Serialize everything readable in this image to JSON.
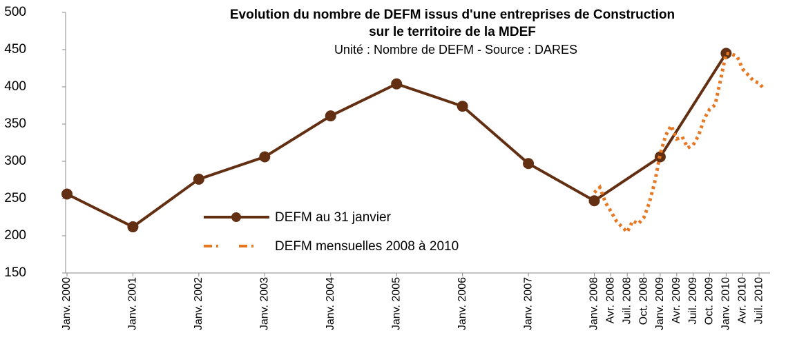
{
  "chart_data": {
    "type": "line",
    "title": "Evolution du nombre de DEFM issus d'une entreprises de Construction",
    "subtitle": "sur le territoire de la MDEF",
    "note": "Unité : Nombre de DEFM - Source : DARES",
    "xlim": [
      0,
      128
    ],
    "xticks": [
      {
        "value": 0,
        "label": "Janv. 2000"
      },
      {
        "value": 12,
        "label": "Janv. 2001"
      },
      {
        "value": 24,
        "label": "Janv. 2002"
      },
      {
        "value": 36,
        "label": "Janv. 2003"
      },
      {
        "value": 48,
        "label": "Janv. 2004"
      },
      {
        "value": 60,
        "label": "Janv. 2005"
      },
      {
        "value": 72,
        "label": "Janv. 2006"
      },
      {
        "value": 84,
        "label": "Janv. 2007"
      },
      {
        "value": 96,
        "label": "Janv. 2008"
      },
      {
        "value": 99,
        "label": "Avr. 2008"
      },
      {
        "value": 102,
        "label": "Juil. 2008"
      },
      {
        "value": 105,
        "label": "Oct. 2008"
      },
      {
        "value": 108,
        "label": "Janv. 2009"
      },
      {
        "value": 111,
        "label": "Avr. 2009"
      },
      {
        "value": 114,
        "label": "Juil. 2009"
      },
      {
        "value": 117,
        "label": "Oct. 2009"
      },
      {
        "value": 120,
        "label": "Janv. 2010"
      },
      {
        "value": 123,
        "label": "Avr. 2010"
      },
      {
        "value": 126,
        "label": "Juil. 2010"
      }
    ],
    "ylim": [
      150,
      500
    ],
    "yticks": [
      150,
      200,
      250,
      300,
      350,
      400,
      450,
      500
    ],
    "grid": false,
    "series": [
      {
        "name": "DEFM au 31 janvier",
        "color": "#632f12",
        "style": "solid-markers",
        "x": [
          0,
          12,
          24,
          36,
          48,
          60,
          72,
          84,
          96,
          108,
          120
        ],
        "values": [
          256,
          212,
          276,
          306,
          361,
          404,
          374,
          297,
          247,
          306,
          445
        ]
      },
      {
        "name": "DEFM mensuelles 2008 à 2010",
        "color": "#e87722",
        "style": "dotted",
        "x": [
          96,
          97,
          98,
          99,
          100,
          101,
          102,
          103,
          104,
          105,
          106,
          107,
          108,
          109,
          110,
          111,
          112,
          113,
          114,
          115,
          116,
          117,
          118,
          119,
          120,
          121,
          122,
          123,
          124,
          125,
          126,
          127
        ],
        "values": [
          258,
          265,
          245,
          233,
          220,
          212,
          205,
          220,
          216,
          224,
          244,
          272,
          310,
          335,
          348,
          330,
          333,
          318,
          322,
          335,
          357,
          370,
          376,
          410,
          445,
          444,
          441,
          424,
          416,
          408,
          405,
          396
        ]
      }
    ]
  }
}
